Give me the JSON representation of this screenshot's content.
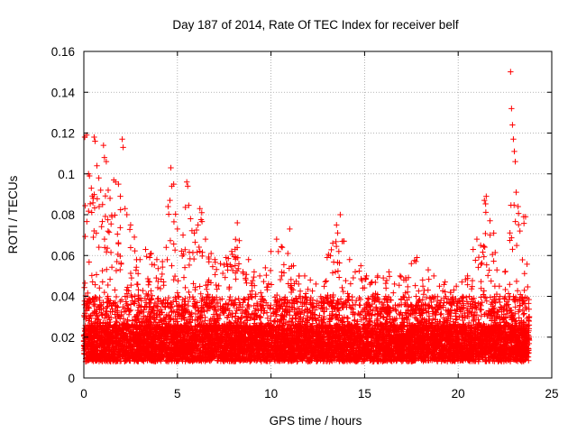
{
  "chart_data": {
    "type": "scatter",
    "title": "Day 187 of 2014, Rate Of TEC Index for receiver belf",
    "xlabel": "GPS time / hours",
    "ylabel": "ROTI / TECUs",
    "xlim": [
      0,
      25
    ],
    "ylim": [
      0,
      0.16
    ],
    "xticks": [
      0,
      5,
      10,
      15,
      20,
      25
    ],
    "yticks": [
      0,
      0.02,
      0.04,
      0.06,
      0.08,
      0.1,
      0.12,
      0.14,
      0.16
    ],
    "xtick_labels": [
      "0",
      "5",
      "10",
      "15",
      "20",
      "25"
    ],
    "ytick_labels": [
      "0",
      "0.02",
      "0.04",
      "0.06",
      "0.08",
      "0.1",
      "0.12",
      "0.14",
      "0.16"
    ],
    "grid": true,
    "marker": "+",
    "marker_color": "#ff0000",
    "data_x_range": [
      0,
      23.8
    ],
    "series": [
      {
        "name": "ROTI",
        "points": [
          [
            0.05,
            0.118
          ],
          [
            0.15,
            0.119
          ],
          [
            0.25,
            0.1
          ],
          [
            0.3,
            0.099
          ],
          [
            0.4,
            0.093
          ],
          [
            0.5,
            0.088
          ],
          [
            0.55,
            0.118
          ],
          [
            0.6,
            0.116
          ],
          [
            0.7,
            0.104
          ],
          [
            0.8,
            0.098
          ],
          [
            0.9,
            0.092
          ],
          [
            1.0,
            0.085
          ],
          [
            1.05,
            0.114
          ],
          [
            1.1,
            0.108
          ],
          [
            1.2,
            0.106
          ],
          [
            1.3,
            0.092
          ],
          [
            1.4,
            0.088
          ],
          [
            1.5,
            0.079
          ],
          [
            1.6,
            0.097
          ],
          [
            1.7,
            0.096
          ],
          [
            1.85,
            0.095
          ],
          [
            1.95,
            0.089
          ],
          [
            2.05,
            0.117
          ],
          [
            2.1,
            0.113
          ],
          [
            2.2,
            0.083
          ],
          [
            2.3,
            0.08
          ],
          [
            2.5,
            0.075
          ],
          [
            2.7,
            0.069
          ],
          [
            3.0,
            0.058
          ],
          [
            3.3,
            0.063
          ],
          [
            3.6,
            0.061
          ],
          [
            3.9,
            0.058
          ],
          [
            4.2,
            0.057
          ],
          [
            4.4,
            0.064
          ],
          [
            4.5,
            0.084
          ],
          [
            4.6,
            0.087
          ],
          [
            4.65,
            0.103
          ],
          [
            4.7,
            0.094
          ],
          [
            4.8,
            0.095
          ],
          [
            5.0,
            0.073
          ],
          [
            5.3,
            0.07
          ],
          [
            5.5,
            0.096
          ],
          [
            5.55,
            0.094
          ],
          [
            5.7,
            0.078
          ],
          [
            5.9,
            0.071
          ],
          [
            6.1,
            0.075
          ],
          [
            6.2,
            0.083
          ],
          [
            6.3,
            0.081
          ],
          [
            6.5,
            0.068
          ],
          [
            6.8,
            0.061
          ],
          [
            7.0,
            0.058
          ],
          [
            7.3,
            0.056
          ],
          [
            7.6,
            0.059
          ],
          [
            7.9,
            0.062
          ],
          [
            8.2,
            0.076
          ],
          [
            8.5,
            0.052
          ],
          [
            8.8,
            0.058
          ],
          [
            9.1,
            0.052
          ],
          [
            9.4,
            0.05
          ],
          [
            9.7,
            0.054
          ],
          [
            10.0,
            0.062
          ],
          [
            10.3,
            0.068
          ],
          [
            10.6,
            0.064
          ],
          [
            10.9,
            0.061
          ],
          [
            11.0,
            0.073
          ],
          [
            11.2,
            0.055
          ],
          [
            11.5,
            0.05
          ],
          [
            11.8,
            0.05
          ],
          [
            12.1,
            0.048
          ],
          [
            12.4,
            0.046
          ],
          [
            12.7,
            0.037
          ],
          [
            13.0,
            0.059
          ],
          [
            13.3,
            0.066
          ],
          [
            13.5,
            0.075
          ],
          [
            13.7,
            0.08
          ],
          [
            13.9,
            0.067
          ],
          [
            14.2,
            0.058
          ],
          [
            14.5,
            0.052
          ],
          [
            14.8,
            0.055
          ],
          [
            15.1,
            0.05
          ],
          [
            15.4,
            0.047
          ],
          [
            15.7,
            0.05
          ],
          [
            16.0,
            0.049
          ],
          [
            16.3,
            0.052
          ],
          [
            16.6,
            0.046
          ],
          [
            16.9,
            0.05
          ],
          [
            17.2,
            0.049
          ],
          [
            17.5,
            0.056
          ],
          [
            17.8,
            0.059
          ],
          [
            18.1,
            0.048
          ],
          [
            18.4,
            0.053
          ],
          [
            18.7,
            0.05
          ],
          [
            19.0,
            0.045
          ],
          [
            19.3,
            0.047
          ],
          [
            19.6,
            0.042
          ],
          [
            19.9,
            0.045
          ],
          [
            20.2,
            0.047
          ],
          [
            20.5,
            0.05
          ],
          [
            20.8,
            0.063
          ],
          [
            21.0,
            0.068
          ],
          [
            21.2,
            0.065
          ],
          [
            21.4,
            0.087
          ],
          [
            21.5,
            0.089
          ],
          [
            21.7,
            0.077
          ],
          [
            21.9,
            0.071
          ],
          [
            22.2,
            0.045
          ],
          [
            22.5,
            0.052
          ],
          [
            22.8,
            0.15
          ],
          [
            22.85,
            0.132
          ],
          [
            22.9,
            0.124
          ],
          [
            22.95,
            0.117
          ],
          [
            23.0,
            0.111
          ],
          [
            23.05,
            0.106
          ],
          [
            23.1,
            0.091
          ],
          [
            23.2,
            0.084
          ],
          [
            23.3,
            0.072
          ],
          [
            23.5,
            0.079
          ],
          [
            23.6,
            0.079
          ],
          [
            23.8,
            0.03
          ]
        ]
      }
    ]
  }
}
